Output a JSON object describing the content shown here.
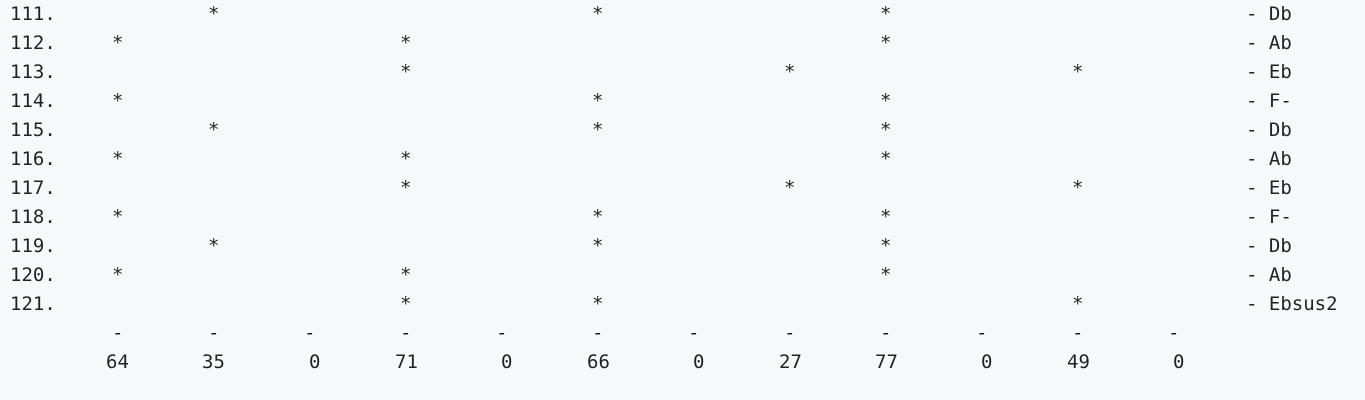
{
  "rows": [
    {
      "label": "111.",
      "marks": [
        0,
        1,
        0,
        0,
        0,
        1,
        0,
        0,
        1,
        0,
        0,
        0
      ],
      "chord": "- Db"
    },
    {
      "label": "112.",
      "marks": [
        1,
        0,
        0,
        1,
        0,
        0,
        0,
        0,
        1,
        0,
        0,
        0
      ],
      "chord": "- Ab"
    },
    {
      "label": "113.",
      "marks": [
        0,
        0,
        0,
        1,
        0,
        0,
        0,
        1,
        0,
        0,
        1,
        0
      ],
      "chord": "- Eb"
    },
    {
      "label": "114.",
      "marks": [
        1,
        0,
        0,
        0,
        0,
        1,
        0,
        0,
        1,
        0,
        0,
        0
      ],
      "chord": "- F-"
    },
    {
      "label": "115.",
      "marks": [
        0,
        1,
        0,
        0,
        0,
        1,
        0,
        0,
        1,
        0,
        0,
        0
      ],
      "chord": "- Db"
    },
    {
      "label": "116.",
      "marks": [
        1,
        0,
        0,
        1,
        0,
        0,
        0,
        0,
        1,
        0,
        0,
        0
      ],
      "chord": "- Ab"
    },
    {
      "label": "117.",
      "marks": [
        0,
        0,
        0,
        1,
        0,
        0,
        0,
        1,
        0,
        0,
        1,
        0
      ],
      "chord": "- Eb"
    },
    {
      "label": "118.",
      "marks": [
        1,
        0,
        0,
        0,
        0,
        1,
        0,
        0,
        1,
        0,
        0,
        0
      ],
      "chord": "- F-"
    },
    {
      "label": "119.",
      "marks": [
        0,
        1,
        0,
        0,
        0,
        1,
        0,
        0,
        1,
        0,
        0,
        0
      ],
      "chord": "- Db"
    },
    {
      "label": "120.",
      "marks": [
        1,
        0,
        0,
        1,
        0,
        0,
        0,
        0,
        1,
        0,
        0,
        0
      ],
      "chord": "- Ab"
    },
    {
      "label": "121.",
      "marks": [
        0,
        0,
        0,
        1,
        0,
        1,
        0,
        0,
        0,
        0,
        1,
        0
      ],
      "chord": "- Ebsus2"
    }
  ],
  "mark_glyph": "*",
  "dash_glyph": "-",
  "totals": [
    "64",
    "35",
    "0",
    "71",
    "0",
    "66",
    "0",
    "27",
    "77",
    "0",
    "49",
    "0"
  ],
  "colors": {
    "background": "#f6f8fa",
    "text": "#1f2328"
  }
}
